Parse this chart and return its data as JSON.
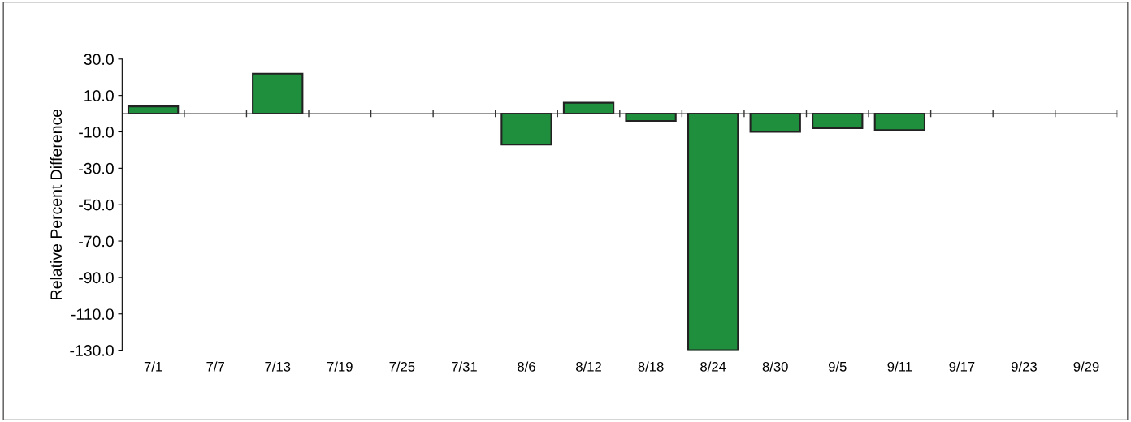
{
  "chart_data": {
    "type": "bar",
    "ylabel": "Relative Percent Difference",
    "categories": [
      "7/1",
      "7/7",
      "7/13",
      "7/19",
      "7/25",
      "7/31",
      "8/6",
      "8/12",
      "8/18",
      "8/24",
      "8/30",
      "9/5",
      "9/11",
      "9/17",
      "9/23",
      "9/29"
    ],
    "values": [
      4,
      null,
      22,
      null,
      null,
      null,
      -17,
      6,
      -4,
      -130,
      -10,
      -8,
      -9,
      null,
      null,
      null
    ],
    "color": "#1f8f3e",
    "ylim": [
      -130,
      30
    ],
    "yticks": [
      {
        "value": 30,
        "label": "30.0"
      },
      {
        "value": 10,
        "label": "10.0"
      },
      {
        "value": -10,
        "label": "-10.0"
      },
      {
        "value": -30,
        "label": "-30.0"
      },
      {
        "value": -50,
        "label": "-50.0"
      },
      {
        "value": -70,
        "label": "-70.0"
      },
      {
        "value": -90,
        "label": "-90.0"
      },
      {
        "value": -110,
        "label": "-110.0"
      },
      {
        "value": -130,
        "label": "-130.0"
      }
    ],
    "grid": false
  }
}
